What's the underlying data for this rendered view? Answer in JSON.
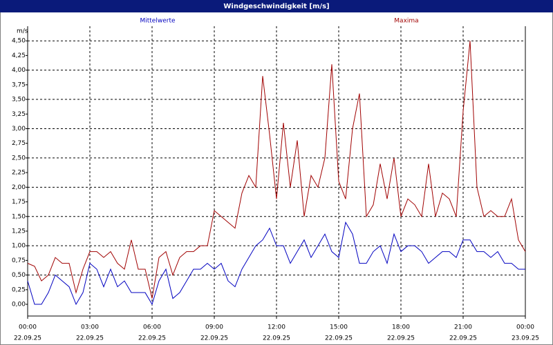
{
  "chart_data": {
    "type": "line",
    "title": "Windgeschwindigkeit [m/s]",
    "y_unit": "m/s",
    "x": [
      0,
      20,
      40,
      60,
      80,
      100,
      120,
      140,
      160,
      180,
      200,
      220,
      240,
      260,
      280,
      300,
      320,
      340,
      360,
      380,
      400,
      420,
      440,
      460,
      480,
      500,
      520,
      540,
      560,
      580,
      600,
      620,
      640,
      660,
      680,
      700,
      720,
      740,
      760,
      780,
      800,
      820,
      840,
      860,
      880,
      900,
      920,
      940,
      960,
      980,
      1000,
      1020,
      1040,
      1060,
      1080,
      1100,
      1120,
      1140,
      1160,
      1180,
      1200,
      1220,
      1240,
      1260,
      1280,
      1300,
      1320,
      1340,
      1360,
      1380,
      1400,
      1420,
      1440
    ],
    "series": [
      {
        "name": "Mittelwerte",
        "color": "#0000c0",
        "values": [
          0.4,
          0.0,
          0.0,
          0.2,
          0.5,
          0.4,
          0.3,
          0.0,
          0.2,
          0.7,
          0.6,
          0.3,
          0.6,
          0.3,
          0.4,
          0.2,
          0.2,
          0.2,
          0.0,
          0.4,
          0.6,
          0.1,
          0.2,
          0.4,
          0.6,
          0.6,
          0.7,
          0.6,
          0.7,
          0.4,
          0.3,
          0.6,
          0.8,
          1.0,
          1.1,
          1.3,
          1.0,
          1.0,
          0.7,
          0.9,
          1.1,
          0.8,
          1.0,
          1.2,
          0.9,
          0.8,
          1.4,
          1.2,
          0.7,
          0.7,
          0.9,
          1.0,
          0.7,
          1.2,
          0.9,
          1.0,
          1.0,
          0.9,
          0.7,
          0.8,
          0.9,
          0.9,
          0.8,
          1.1,
          1.1,
          0.9,
          0.9,
          0.8,
          0.9,
          0.7,
          0.7,
          0.6,
          0.6
        ]
      },
      {
        "name": "Maxima",
        "color": "#a00000",
        "values": [
          0.7,
          0.65,
          0.4,
          0.5,
          0.8,
          0.7,
          0.7,
          0.2,
          0.6,
          0.9,
          0.9,
          0.8,
          0.9,
          0.7,
          0.6,
          1.1,
          0.6,
          0.6,
          0.1,
          0.8,
          0.9,
          0.5,
          0.8,
          0.9,
          0.9,
          1.0,
          1.0,
          1.6,
          1.5,
          1.4,
          1.3,
          1.9,
          2.2,
          2.0,
          3.9,
          2.9,
          1.8,
          3.1,
          2.0,
          2.8,
          1.5,
          2.2,
          2.0,
          2.5,
          4.1,
          2.1,
          1.8,
          3.0,
          3.6,
          1.5,
          1.7,
          2.4,
          1.8,
          2.5,
          1.5,
          1.8,
          1.7,
          1.5,
          2.4,
          1.5,
          1.9,
          1.8,
          1.5,
          3.3,
          4.5,
          2.0,
          1.5,
          1.6,
          1.5,
          1.5,
          1.8,
          1.1,
          0.9
        ]
      }
    ],
    "xlim": [
      0,
      1440
    ],
    "ylim": [
      -0.2,
      4.75
    ],
    "xticks": [
      {
        "value": 0,
        "label": "00:00"
      },
      {
        "value": 180,
        "label": "03:00"
      },
      {
        "value": 360,
        "label": "06:00"
      },
      {
        "value": 540,
        "label": "09:00"
      },
      {
        "value": 720,
        "label": "12:00"
      },
      {
        "value": 900,
        "label": "15:00"
      },
      {
        "value": 1080,
        "label": "18:00"
      },
      {
        "value": 1260,
        "label": "21:00"
      },
      {
        "value": 1440,
        "label": "00:00"
      }
    ],
    "xtick_dates": [
      "22.09.25",
      "22.09.25",
      "22.09.25",
      "22.09.25",
      "22.09.25",
      "22.09.25",
      "22.09.25",
      "22.09.25",
      "23.09.25"
    ],
    "yticks": [
      {
        "value": 0,
        "label": "0,00"
      },
      {
        "value": 0.25,
        "label": "0,25"
      },
      {
        "value": 0.5,
        "label": "0,50"
      },
      {
        "value": 0.75,
        "label": "0,75"
      },
      {
        "value": 1,
        "label": "1,00"
      },
      {
        "value": 1.25,
        "label": "1,25"
      },
      {
        "value": 1.5,
        "label": "1,50"
      },
      {
        "value": 1.75,
        "label": "1,75"
      },
      {
        "value": 2,
        "label": "2,00"
      },
      {
        "value": 2.25,
        "label": "2,25"
      },
      {
        "value": 2.5,
        "label": "2,50"
      },
      {
        "value": 2.75,
        "label": "2,75"
      },
      {
        "value": 3,
        "label": "3,00"
      },
      {
        "value": 3.25,
        "label": "3,25"
      },
      {
        "value": 3.5,
        "label": "3,50"
      },
      {
        "value": 3.75,
        "label": "3,75"
      },
      {
        "value": 4,
        "label": "4,00"
      },
      {
        "value": 4.25,
        "label": "4,25"
      },
      {
        "value": 4.5,
        "label": "4,50"
      }
    ],
    "grid": true
  }
}
